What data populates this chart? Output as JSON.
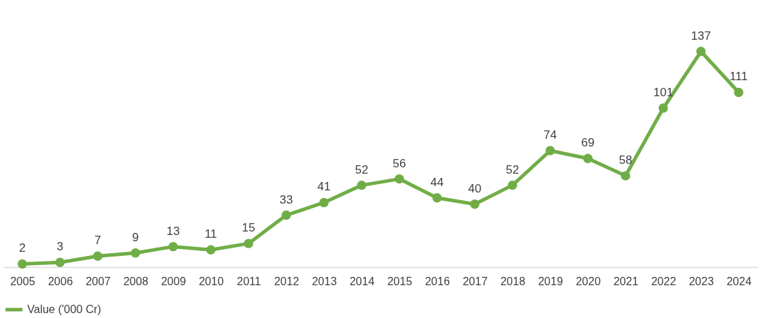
{
  "chart_data": {
    "type": "line",
    "categories": [
      "2005",
      "2006",
      "2007",
      "2008",
      "2009",
      "2010",
      "2011",
      "2012",
      "2013",
      "2014",
      "2015",
      "2016",
      "2017",
      "2018",
      "2019",
      "2020",
      "2021",
      "2022",
      "2023",
      "2024"
    ],
    "series": [
      {
        "name": "Value ('000 Cr)",
        "color": "#70ad47",
        "values": [
          2,
          3,
          7,
          9,
          13,
          11,
          15,
          33,
          41,
          52,
          56,
          44,
          40,
          52,
          74,
          69,
          58,
          101,
          137,
          111
        ]
      }
    ],
    "data_labels": true,
    "legend": "bottom",
    "grid": false,
    "marker": "circle",
    "line_style": "solid",
    "tick_labels": "x"
  }
}
